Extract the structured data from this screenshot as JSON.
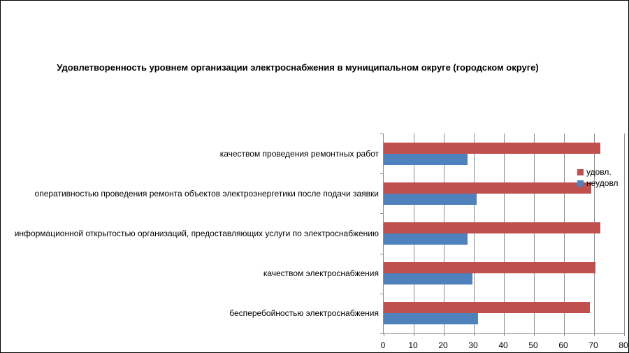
{
  "title": "Удовлетворенность уровнем организации электроснабжения в муниципальном округе (городском округе)",
  "legend": {
    "items": [
      {
        "label": "удовл.",
        "color": "#C0504D"
      },
      {
        "label": "неудовл",
        "color": "#4F81BD"
      }
    ]
  },
  "colors": {
    "series_satisfied": "#C0504D",
    "series_unsatisfied": "#4F81BD",
    "gridline": "#8c8c8c",
    "text": "#000000",
    "background": "#ffffff"
  },
  "chart_data": {
    "type": "bar",
    "orientation": "horizontal",
    "title": "Удовлетворенность уровнем организации электроснабжения в муниципальном округе (городском округе)",
    "categories": [
      "качеством проведения ремонтных работ",
      "оперативностью проведения ремонта объектов электроэнергетики после подачи заявки",
      "информационной открытостью организаций, предоставляющих услуги по электроснабжению",
      "качеством электроснабжения",
      "бесперебойностью электроснабжения"
    ],
    "series": [
      {
        "name": "удовл.",
        "color": "#C0504D",
        "values": [
          72,
          69,
          72,
          70.5,
          68.7
        ]
      },
      {
        "name": "неудовл",
        "color": "#4F81BD",
        "values": [
          28,
          31,
          28,
          29.5,
          31.3
        ]
      }
    ],
    "xlabel": "",
    "ylabel": "",
    "xlim": [
      0,
      80
    ],
    "xticks": [
      0,
      10,
      20,
      30,
      40,
      50,
      60,
      70,
      80
    ],
    "grid": true,
    "legend_position": "right"
  }
}
